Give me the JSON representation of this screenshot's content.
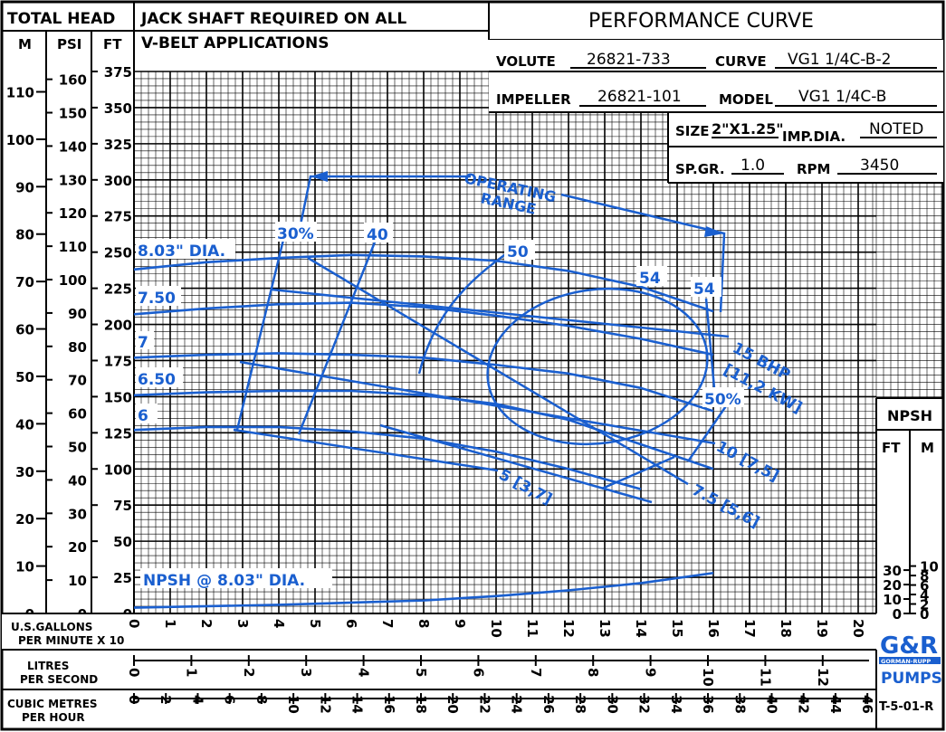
{
  "header": {
    "total_head": "TOTAL HEAD",
    "col_m": "M",
    "col_psi": "PSI",
    "col_ft": "FT",
    "note_line1": "JACK SHAFT REQUIRED ON ALL",
    "note_line2": "V-BELT APPLICATIONS",
    "title": "PERFORMANCE CURVE"
  },
  "specs": {
    "volute_label": "VOLUTE",
    "volute_value": "26821-733",
    "curve_label": "CURVE",
    "curve_value": "VG1 1/4C-B-2",
    "impeller_label": "IMPELLER",
    "impeller_value": "26821-101",
    "model_label": "MODEL",
    "model_value": "VG1 1/4C-B",
    "size_label": "SIZE",
    "size_value": "2\"X1.25\"",
    "impdia_label": "IMP.DIA.",
    "impdia_value": "NOTED",
    "spgr_label": "SP.GR.",
    "spgr_value": "1.0",
    "rpm_label": "RPM",
    "rpm_value": "3450"
  },
  "axes": {
    "m_ticks": [
      "110",
      "100",
      "90",
      "80",
      "70",
      "60",
      "50",
      "40",
      "30",
      "20",
      "10",
      "0"
    ],
    "psi_ticks": [
      "160",
      "150",
      "140",
      "130",
      "120",
      "110",
      "100",
      "90",
      "80",
      "70",
      "60",
      "50",
      "40",
      "30",
      "20",
      "10",
      "0"
    ],
    "ft_ticks": [
      "375",
      "350",
      "325",
      "300",
      "275",
      "250",
      "225",
      "200",
      "175",
      "150",
      "125",
      "100",
      "75",
      "50",
      "25",
      "0"
    ],
    "gpm_label_line1": "U.S.GALLONS",
    "gpm_label_line2": "PER MINUTE  X 10",
    "gpm_ticks": [
      "0",
      "1",
      "2",
      "3",
      "4",
      "5",
      "6",
      "7",
      "8",
      "9",
      "10",
      "11",
      "12",
      "13",
      "14",
      "15",
      "16",
      "17",
      "18",
      "19",
      "20"
    ],
    "lps_label_line1": "LITRES",
    "lps_label_line2": "PER SECOND",
    "lps_ticks": [
      "0",
      "1",
      "2",
      "3",
      "4",
      "5",
      "6",
      "7",
      "8",
      "9",
      "10",
      "11",
      "12",
      "13"
    ],
    "m3h_label_line1": "CUBIC METRES",
    "m3h_label_line2": "PER HOUR",
    "m3h_ticks": [
      "0",
      "2",
      "4",
      "6",
      "8",
      "10",
      "12",
      "14",
      "16",
      "18",
      "20",
      "22",
      "24",
      "26",
      "28",
      "30",
      "32",
      "34",
      "36",
      "38",
      "40",
      "42",
      "44",
      "46"
    ],
    "npsh_title": "NPSH",
    "npsh_ft": "FT",
    "npsh_m": "M",
    "npsh_ft_ticks": [
      "30",
      "20",
      "10",
      "0"
    ],
    "npsh_m_ticks": [
      "10",
      "8",
      "6",
      "4",
      "2",
      "0"
    ]
  },
  "labels": {
    "operating_range_line1": "OPERATING",
    "operating_range_line2": "RANGE",
    "bhp_line1": "15 BHP",
    "bhp_line2": "[11,2 KW]",
    "bhp_10": "10 [7,5]",
    "bhp_75": "7.5 [5,6]",
    "bhp_5": "5 [3,7]",
    "npsh_curve": "NPSH @ 8.03\" DIA."
  },
  "footer": {
    "brand_logo": "G&R",
    "brand_name": "GORMAN-RUPP",
    "brand_pumps": "PUMPS",
    "doc_code": "T-5-01-R"
  },
  "colors": {
    "curve_blue": "#1a5fcf",
    "grid": "#000000"
  },
  "chart_data": {
    "type": "line",
    "title": "PERFORMANCE CURVE",
    "xlabel": "U.S.GALLONS PER MINUTE X 10",
    "ylabel": "TOTAL HEAD FT",
    "xlim": [
      0,
      200
    ],
    "ylim": [
      0,
      375
    ],
    "grid": true,
    "series": [
      {
        "name": "8.03\" DIA.",
        "x": [
          0,
          20,
          40,
          60,
          80,
          100,
          120,
          140,
          160
        ],
        "y": [
          238,
          243,
          246,
          248,
          247,
          244,
          237,
          226,
          209
        ]
      },
      {
        "name": "7.50",
        "x": [
          0,
          20,
          40,
          60,
          80,
          100,
          120,
          140,
          160
        ],
        "y": [
          207,
          211,
          214,
          215,
          212,
          206,
          199,
          190,
          179
        ]
      },
      {
        "name": "7",
        "x": [
          0,
          20,
          40,
          60,
          80,
          100,
          120,
          140,
          160
        ],
        "y": [
          177,
          179,
          180,
          179,
          177,
          172,
          166,
          156,
          140
        ]
      },
      {
        "name": "6.50",
        "x": [
          0,
          20,
          40,
          60,
          80,
          100,
          120,
          140,
          160
        ],
        "y": [
          151,
          153,
          154,
          154,
          151,
          145,
          134,
          117,
          100
        ]
      },
      {
        "name": "6",
        "x": [
          0,
          20,
          40,
          60,
          80,
          100,
          120,
          140
        ],
        "y": [
          127,
          129,
          129,
          126,
          121,
          112,
          100,
          86
        ]
      },
      {
        "name": "NPSH @ 8.03\" DIA.",
        "x": [
          0,
          40,
          80,
          100,
          120,
          140,
          160
        ],
        "y": [
          4,
          6,
          9,
          12,
          16,
          21,
          28
        ]
      }
    ],
    "efficiency_labels": [
      "30%",
      "40",
      "50",
      "54",
      "54",
      "50%"
    ],
    "bhp_labels": [
      "15 BHP [11,2 KW]",
      "10 [7,5]",
      "7.5 [5,6]",
      "5 [3,7]"
    ]
  }
}
